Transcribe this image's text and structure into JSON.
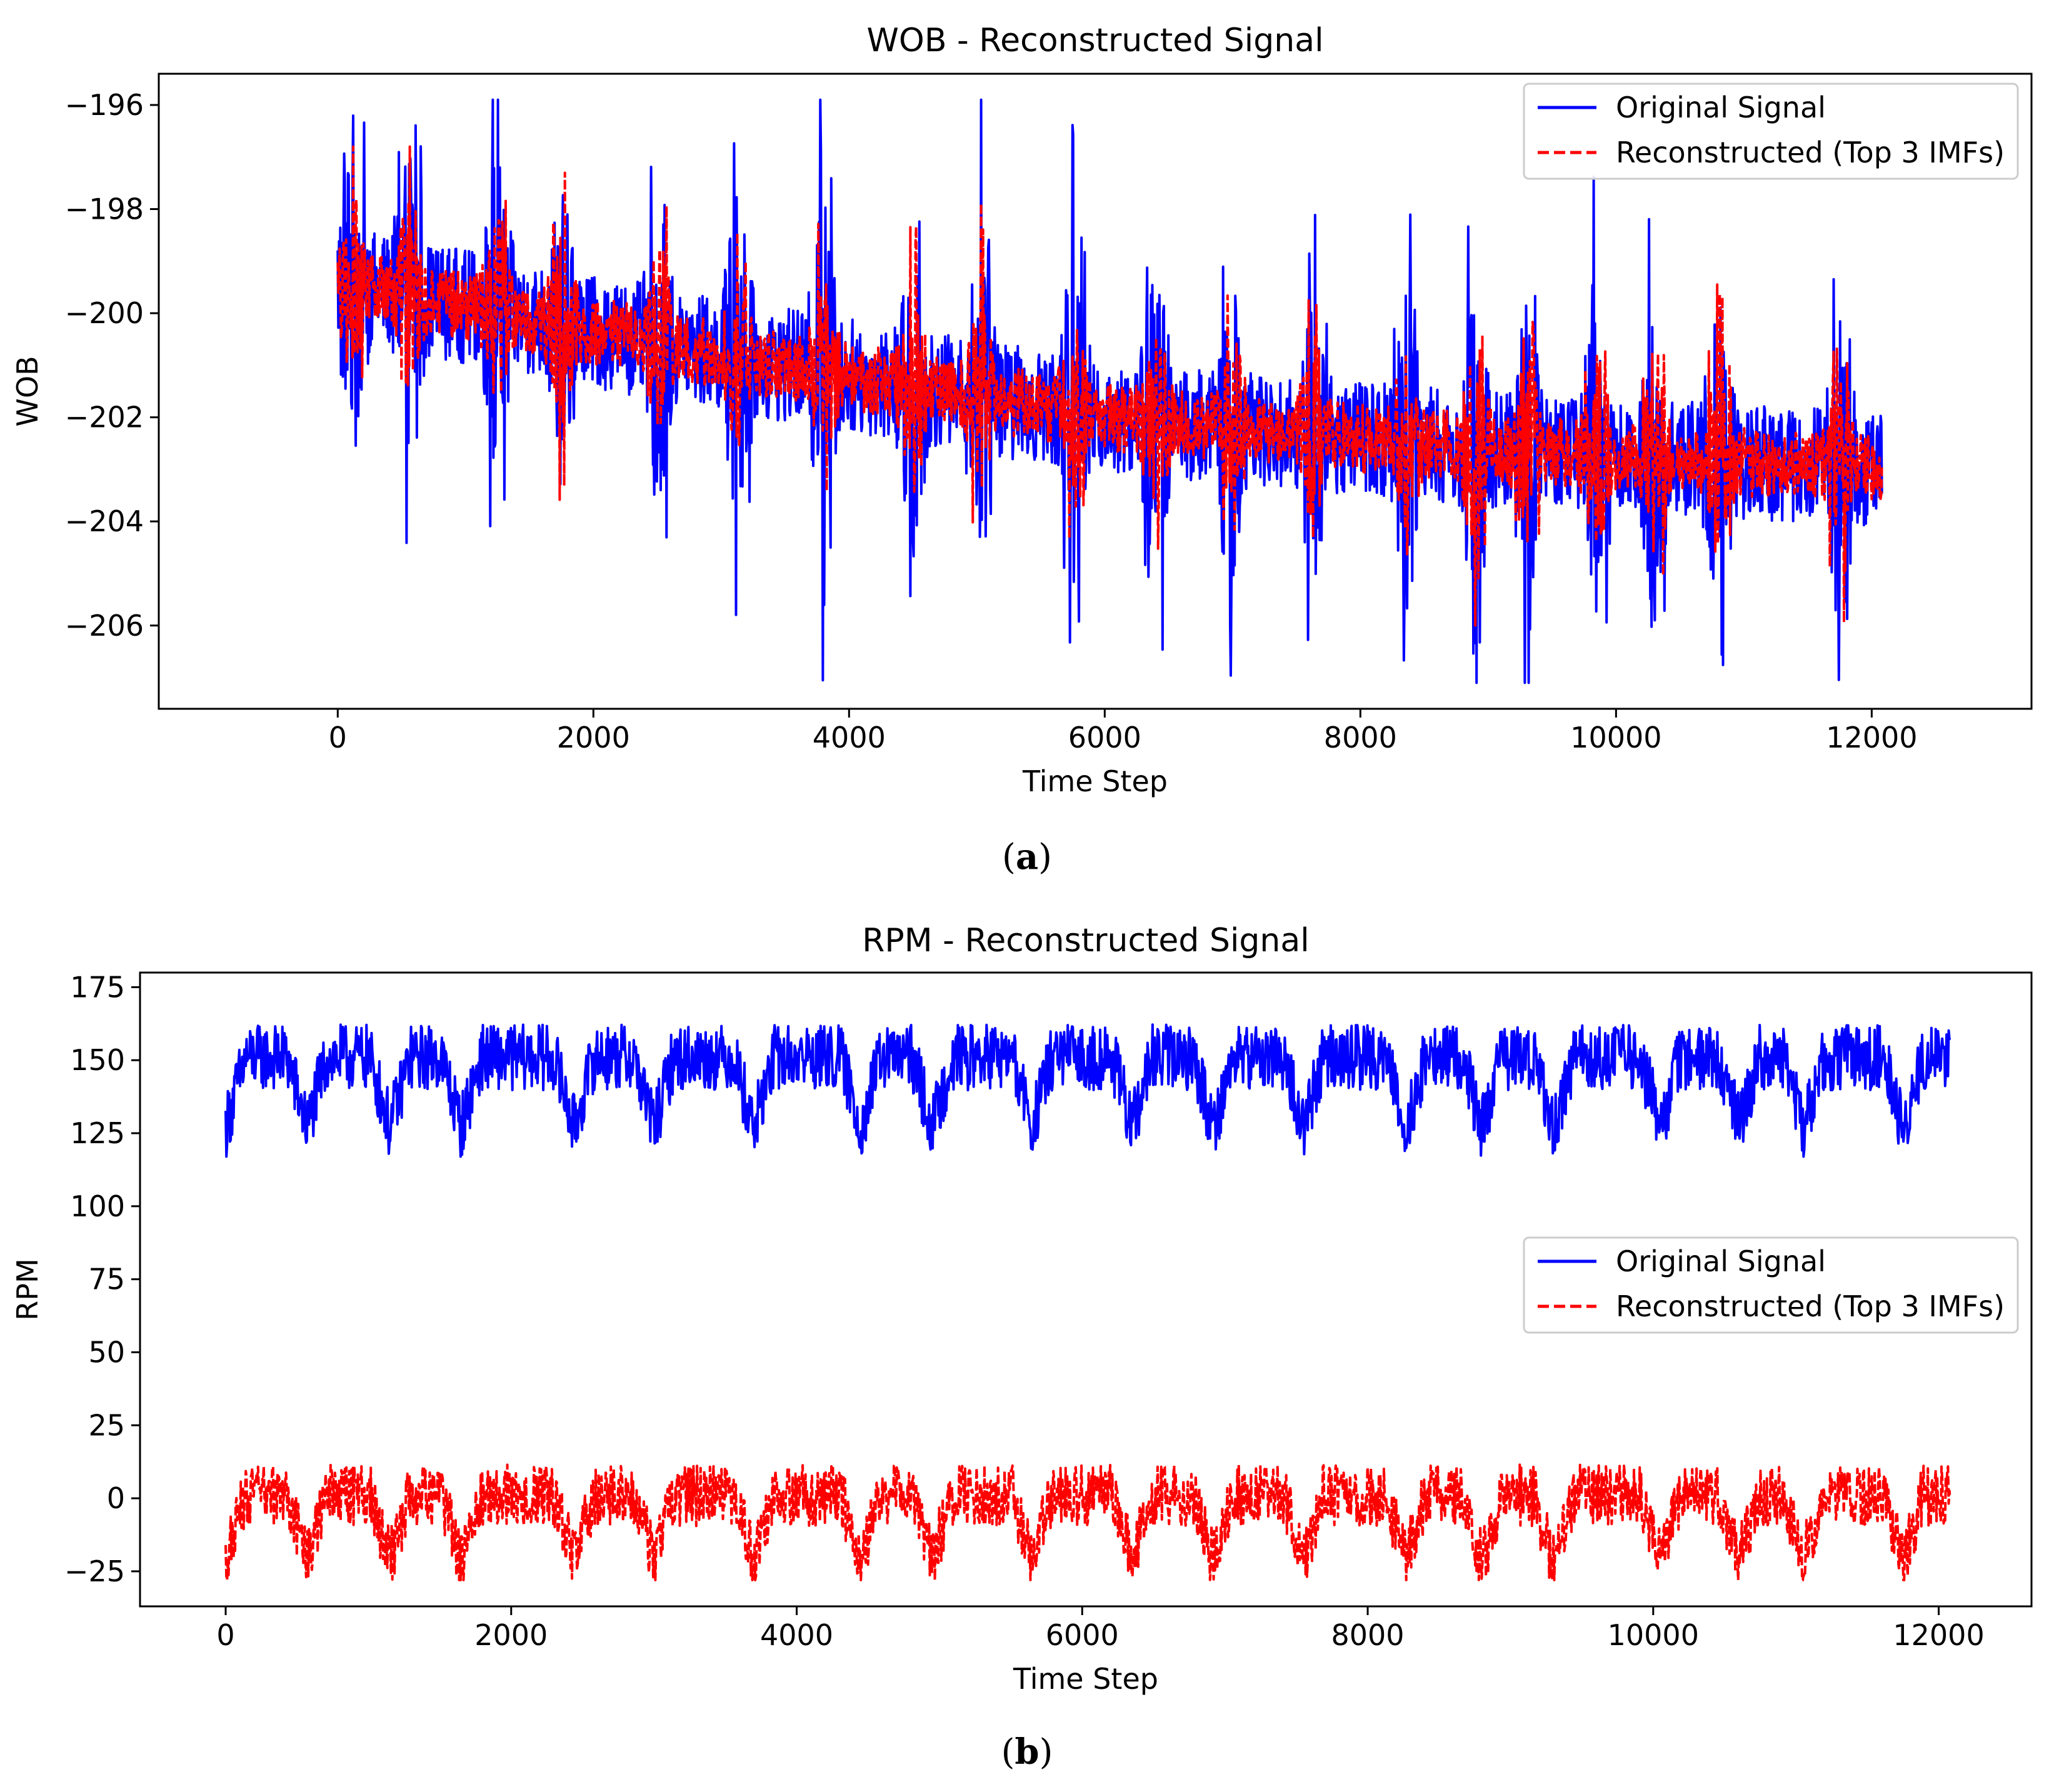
{
  "colors": {
    "original": "#0000ff",
    "reconstructed": "#ff0000",
    "axis": "#000000",
    "legend_border": "#cccccc"
  },
  "captions": {
    "a": "a",
    "b": "b"
  },
  "chart_data": [
    {
      "type": "line",
      "title": "WOB - Reconstructed Signal",
      "xlabel": "Time Step",
      "ylabel": "WOB",
      "xlim": [
        -1400,
        13250
      ],
      "ylim": [
        -207.6,
        -195.4
      ],
      "xticks": [
        0,
        2000,
        4000,
        6000,
        8000,
        10000,
        12000
      ],
      "yticks": [
        -196,
        -198,
        -200,
        -202,
        -204,
        -206
      ],
      "grid": false,
      "legend_position": "top-right",
      "series": [
        {
          "name": "Original Signal",
          "style": "solid",
          "x_range": [
            0,
            12080
          ],
          "trend": [
            [
              0,
              -199.4
            ],
            [
              3000,
              -200.8
            ],
            [
              6000,
              -202.0
            ],
            [
              9000,
              -202.6
            ],
            [
              12080,
              -203.0
            ]
          ],
          "band": 2.0,
          "bursts": [
            120,
            560,
            1250,
            1750,
            2520,
            3130,
            3800,
            4500,
            5030,
            5760,
            6400,
            7000,
            7640,
            8360,
            8900,
            9300,
            9850,
            10300,
            10800,
            11750
          ],
          "max": -195.9,
          "min": -207.1
        },
        {
          "name": "Reconstructed (Top 3 IMFs)",
          "style": "dashed",
          "x_range": [
            0,
            12080
          ],
          "trend": [
            [
              0,
              -199.4
            ],
            [
              3000,
              -200.8
            ],
            [
              6000,
              -202.0
            ],
            [
              9000,
              -202.6
            ],
            [
              12080,
              -203.0
            ]
          ],
          "band": 1.2,
          "bursts": [
            120,
            560,
            1250,
            1750,
            2520,
            3130,
            3800,
            4500,
            5030,
            5760,
            6400,
            7000,
            7640,
            8360,
            8900,
            9300,
            9850,
            10300,
            10800,
            11750
          ],
          "max": -196.8,
          "min": -206.3
        }
      ]
    },
    {
      "type": "line",
      "title": "RPM - Reconstructed Signal",
      "xlabel": "Time Step",
      "ylabel": "RPM",
      "xlim": [
        -600,
        12650
      ],
      "ylim": [
        -37,
        180
      ],
      "xticks": [
        0,
        2000,
        4000,
        6000,
        8000,
        10000,
        12000
      ],
      "yticks": [
        175,
        150,
        125,
        100,
        75,
        50,
        25,
        0,
        -25
      ],
      "grid": false,
      "legend_position": "center-right",
      "series": [
        {
          "name": "Original Signal",
          "style": "solid",
          "x_range": [
            0,
            12080
          ],
          "trend": [
            [
              0,
              151
            ],
            [
              12080,
              151
            ]
          ],
          "band": 15,
          "dips": [
            0,
            570,
            1150,
            1650,
            2440,
            3000,
            3700,
            4450,
            4950,
            5650,
            6350,
            6920,
            7550,
            8270,
            8800,
            9300,
            10050,
            10600,
            11050,
            11750
          ],
          "max": 170,
          "min": 117
        },
        {
          "name": "Reconstructed (Top 3 IMFs)",
          "style": "dashed",
          "x_range": [
            0,
            12080
          ],
          "trend": [
            [
              0,
              1
            ],
            [
              12080,
              1
            ]
          ],
          "band": 14,
          "dips": [
            0,
            570,
            1150,
            1650,
            2440,
            3000,
            3700,
            4450,
            4950,
            5650,
            6350,
            6920,
            7550,
            8270,
            8800,
            9300,
            10050,
            10600,
            11050,
            11750
          ],
          "max": 22,
          "min": -28
        }
      ]
    }
  ]
}
